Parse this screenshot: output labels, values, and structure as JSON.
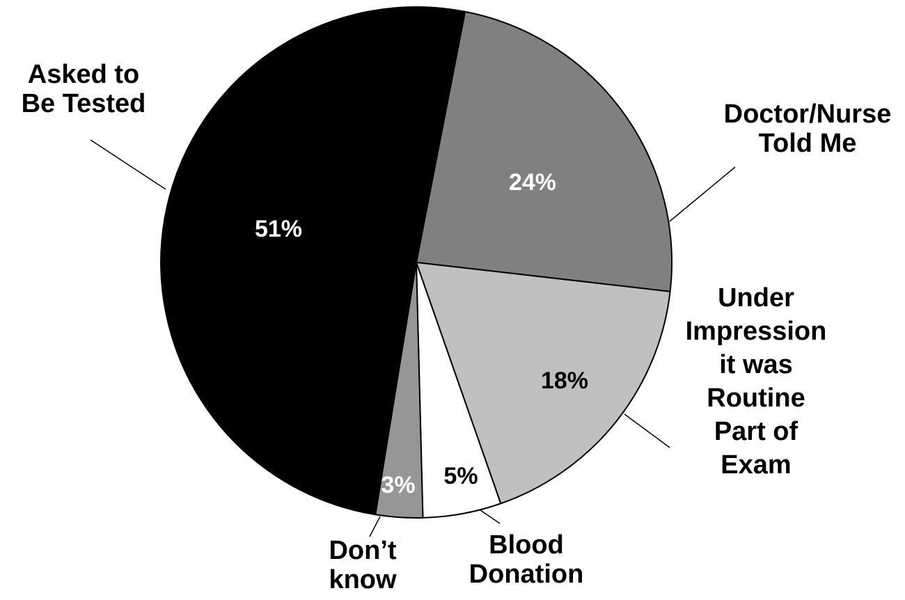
{
  "chart_data": {
    "type": "pie",
    "title": "",
    "slices": [
      {
        "label": "Doctor/Nurse Told Me",
        "label_lines": [
          "Doctor/Nurse",
          "Told Me"
        ],
        "value": 24,
        "value_label": "24%",
        "color": "#808080",
        "value_label_color": "#ffffff"
      },
      {
        "label": "Under Impression it was Routine Part of Exam",
        "label_lines": [
          "Under",
          "Impression",
          "it was",
          "Routine",
          "Part of",
          "Exam"
        ],
        "value": 18,
        "value_label": "18%",
        "color": "#c0c0c0",
        "value_label_color": "#000000"
      },
      {
        "label": "Blood Donation",
        "label_lines": [
          "Blood",
          "Donation"
        ],
        "value": 5,
        "value_label": "5%",
        "color": "#ffffff",
        "value_label_color": "#000000"
      },
      {
        "label": "Don’t know",
        "label_lines": [
          "Don’t",
          "know"
        ],
        "value": 3,
        "value_label": "3%",
        "color": "#969696",
        "value_label_color": "#ffffff"
      },
      {
        "label": "Asked to Be Tested",
        "label_lines": [
          "Asked to",
          "Be Tested"
        ],
        "value": 51,
        "value_label": "51%",
        "color": "#000000",
        "value_label_color": "#ffffff"
      }
    ],
    "legend": "none"
  }
}
